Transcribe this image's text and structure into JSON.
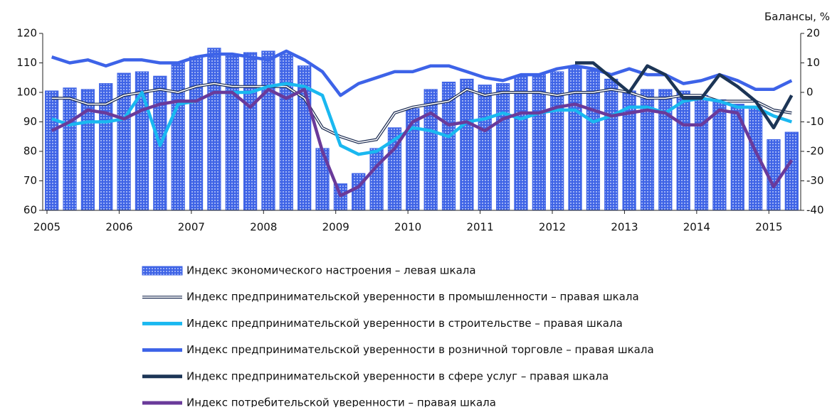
{
  "chart_data": {
    "type": "combo",
    "y2_label": "Балансы, %",
    "categories": [
      "2005",
      null,
      null,
      null,
      "2006",
      null,
      null,
      null,
      "2007",
      null,
      null,
      null,
      "2008",
      null,
      null,
      null,
      "2009",
      null,
      null,
      null,
      "2010",
      null,
      null,
      null,
      "2011",
      null,
      null,
      null,
      "2012",
      null,
      null,
      null,
      "2013",
      null,
      null,
      null,
      "2014",
      null,
      null,
      null,
      "2015",
      null
    ],
    "ylim": [
      60,
      120
    ],
    "yticks": [
      60,
      70,
      80,
      90,
      100,
      110,
      120
    ],
    "y2lim": [
      -40,
      20
    ],
    "y2ticks": [
      -40,
      -30,
      -20,
      -10,
      0,
      10,
      20
    ],
    "series": [
      {
        "name": "Индекс экономического настроения – левая шкала",
        "type": "bar",
        "color": "#3f64e6",
        "values": [
          100.5,
          101.5,
          101,
          103,
          106.5,
          107,
          105.5,
          110,
          112,
          115,
          113,
          113.5,
          114,
          113,
          109,
          81,
          69,
          72.5,
          81,
          88,
          94.5,
          101,
          103.5,
          104.5,
          102.5,
          103,
          105.5,
          106,
          107,
          108.5,
          107.5,
          104.5,
          100.5,
          101,
          101,
          100.5,
          99,
          97.5,
          96,
          95,
          84,
          86.5
        ]
      },
      {
        "name": "Индекс предпринимательской уверенности в промышленности – правая шкала",
        "type": "double-line",
        "color": "#1a2a50",
        "axis": "y2",
        "values": [
          -2,
          -2,
          -4,
          -4,
          -1,
          0,
          1,
          0,
          2,
          3,
          2,
          2,
          2,
          2,
          -2,
          -12,
          -15,
          -17,
          -16,
          -7,
          -5,
          -4,
          -3,
          1,
          -1,
          0,
          0,
          0,
          -1,
          0,
          0,
          1,
          0,
          -2,
          -2,
          -1,
          -1,
          -3,
          -3,
          -3,
          -6,
          -7
        ]
      },
      {
        "name": "Индекс предпринимательской уверенности в строительстве – правая шкала",
        "type": "line",
        "color": "#1ab8f0",
        "axis": "y2",
        "values": [
          -9,
          -11,
          -10,
          -10,
          -9,
          0,
          -18,
          -4,
          -3,
          0,
          0,
          0,
          2,
          3,
          2,
          -1,
          -18,
          -21,
          -20,
          -16,
          -12,
          -13,
          -15,
          -10,
          -9,
          -7,
          -9,
          -7,
          -6,
          -6,
          -10,
          -8,
          -5,
          -5,
          -7,
          -3,
          -2,
          -3,
          -5,
          -5,
          -8,
          -10
        ]
      },
      {
        "name": "Индекс предпринимательской уверенности в розничной торговле – правая шкала",
        "type": "line",
        "color": "#3d63e8",
        "axis": "y2",
        "values": [
          12,
          10,
          11,
          9,
          11,
          11,
          10,
          10,
          12,
          13,
          13,
          12,
          11,
          14,
          11,
          7,
          -1,
          3,
          5,
          7,
          7,
          9,
          9,
          7,
          5,
          4,
          6,
          6,
          8,
          9,
          8,
          6,
          8,
          6,
          6,
          3,
          4,
          6,
          4,
          1,
          1,
          4
        ]
      },
      {
        "name": "Индекс предпринимательской уверенности в сфере услуг – правая шкала",
        "type": "line",
        "color": "#1c3556",
        "axis": "y2",
        "values": [
          null,
          null,
          null,
          null,
          null,
          null,
          null,
          null,
          null,
          null,
          null,
          null,
          null,
          null,
          null,
          null,
          null,
          null,
          null,
          null,
          null,
          null,
          null,
          null,
          null,
          null,
          null,
          null,
          null,
          10,
          10,
          5,
          0,
          9,
          6,
          -2,
          -2,
          6,
          2,
          -3,
          -12,
          -1
        ]
      },
      {
        "name": "Индекс потребительской  уверенности – правая шкала",
        "type": "line",
        "color": "#6a3a9a",
        "axis": "y2",
        "values": [
          -13,
          -10,
          -6,
          -7,
          -9,
          -6,
          -4,
          -3,
          -3,
          0,
          0,
          -5,
          1,
          -2,
          1,
          -20,
          -35,
          -32,
          -25,
          -19,
          -10,
          -7,
          -11,
          -10,
          -13,
          -9,
          -7,
          -7,
          -5,
          -4,
          -6,
          -8,
          -7,
          -6,
          -7,
          -11,
          -11,
          -6,
          -7,
          -20,
          -32,
          -23
        ]
      }
    ]
  }
}
